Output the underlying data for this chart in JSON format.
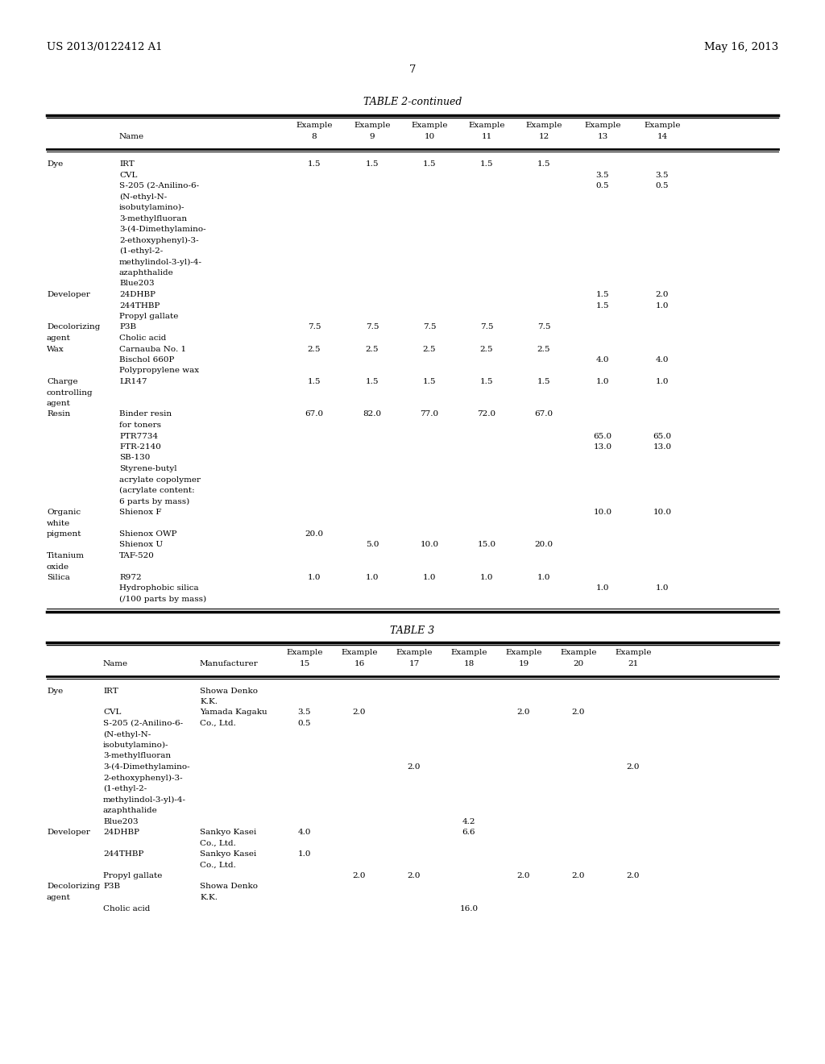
{
  "header_left": "US 2013/0122412 A1",
  "header_right": "May 16, 2013",
  "page_number": "7",
  "table2_title": "TABLE 2-continued",
  "table3_title": "TABLE 3",
  "bg_color": "#ffffff",
  "text_color": "#000000",
  "font_size": 7.5,
  "t2_rows": [
    [
      "Dye",
      "IRT",
      "1.5",
      "1.5",
      "1.5",
      "1.5",
      "1.5",
      "",
      ""
    ],
    [
      "",
      "CVL",
      "",
      "",
      "",
      "",
      "",
      "3.5",
      "3.5"
    ],
    [
      "",
      "S-205 (2-Anilino-6-",
      "",
      "",
      "",
      "",
      "",
      "0.5",
      "0.5"
    ],
    [
      "",
      "(N-ethyl-N-",
      "",
      "",
      "",
      "",
      "",
      "",
      ""
    ],
    [
      "",
      "isobutylamino)-",
      "",
      "",
      "",
      "",
      "",
      "",
      ""
    ],
    [
      "",
      "3-methylfluoran",
      "",
      "",
      "",
      "",
      "",
      "",
      ""
    ],
    [
      "",
      "3-(4-Dimethylamino-",
      "",
      "",
      "",
      "",
      "",
      "",
      ""
    ],
    [
      "",
      "2-ethoxyphenyl)-3-",
      "",
      "",
      "",
      "",
      "",
      "",
      ""
    ],
    [
      "",
      "(1-ethyl-2-",
      "",
      "",
      "",
      "",
      "",
      "",
      ""
    ],
    [
      "",
      "methylindol-3-yl)-4-",
      "",
      "",
      "",
      "",
      "",
      "",
      ""
    ],
    [
      "",
      "azaphthalide",
      "",
      "",
      "",
      "",
      "",
      "",
      ""
    ],
    [
      "",
      "Blue203",
      "",
      "",
      "",
      "",
      "",
      "",
      ""
    ],
    [
      "Developer",
      "24DHBP",
      "",
      "",
      "",
      "",
      "",
      "1.5",
      "2.0"
    ],
    [
      "",
      "244THBP",
      "",
      "",
      "",
      "",
      "",
      "1.5",
      "1.0"
    ],
    [
      "",
      "Propyl gallate",
      "",
      "",
      "",
      "",
      "",
      "",
      ""
    ],
    [
      "Decolorizing",
      "P3B",
      "7.5",
      "7.5",
      "7.5",
      "7.5",
      "7.5",
      "",
      ""
    ],
    [
      "agent",
      "Cholic acid",
      "",
      "",
      "",
      "",
      "",
      "",
      ""
    ],
    [
      "Wax",
      "Carnauba No. 1",
      "2.5",
      "2.5",
      "2.5",
      "2.5",
      "2.5",
      "",
      ""
    ],
    [
      "",
      "Bischol 660P",
      "",
      "",
      "",
      "",
      "",
      "4.0",
      "4.0"
    ],
    [
      "",
      "Polypropylene wax",
      "",
      "",
      "",
      "",
      "",
      "",
      ""
    ],
    [
      "Charge",
      "LR147",
      "1.5",
      "1.5",
      "1.5",
      "1.5",
      "1.5",
      "1.0",
      "1.0"
    ],
    [
      "controlling",
      "",
      "",
      "",
      "",
      "",
      "",
      "",
      ""
    ],
    [
      "agent",
      "",
      "",
      "",
      "",
      "",
      "",
      "",
      ""
    ],
    [
      "Resin",
      "Binder resin",
      "67.0",
      "82.0",
      "77.0",
      "72.0",
      "67.0",
      "",
      ""
    ],
    [
      "",
      "for toners",
      "",
      "",
      "",
      "",
      "",
      "",
      ""
    ],
    [
      "",
      "PTR7734",
      "",
      "",
      "",
      "",
      "",
      "65.0",
      "65.0"
    ],
    [
      "",
      "FTR-2140",
      "",
      "",
      "",
      "",
      "",
      "13.0",
      "13.0"
    ],
    [
      "",
      "SB-130",
      "",
      "",
      "",
      "",
      "",
      "",
      ""
    ],
    [
      "",
      "Styrene-butyl",
      "",
      "",
      "",
      "",
      "",
      "",
      ""
    ],
    [
      "",
      "acrylate copolymer",
      "",
      "",
      "",
      "",
      "",
      "",
      ""
    ],
    [
      "",
      "(acrylate content:",
      "",
      "",
      "",
      "",
      "",
      "",
      ""
    ],
    [
      "",
      "6 parts by mass)",
      "",
      "",
      "",
      "",
      "",
      "",
      ""
    ],
    [
      "Organic",
      "Shienox F",
      "",
      "",
      "",
      "",
      "",
      "10.0",
      "10.0"
    ],
    [
      "white",
      "",
      "",
      "",
      "",
      "",
      "",
      "",
      ""
    ],
    [
      "pigment",
      "Shienox OWP",
      "20.0",
      "",
      "",
      "",
      "",
      "",
      ""
    ],
    [
      "",
      "Shienox U",
      "",
      "5.0",
      "10.0",
      "15.0",
      "20.0",
      "",
      ""
    ],
    [
      "Titanium",
      "TAF-520",
      "",
      "",
      "",
      "",
      "",
      "",
      ""
    ],
    [
      "oxide",
      "",
      "",
      "",
      "",
      "",
      "",
      "",
      ""
    ],
    [
      "Silica",
      "R972",
      "1.0",
      "1.0",
      "1.0",
      "1.0",
      "1.0",
      "",
      ""
    ],
    [
      "",
      "Hydrophobic silica",
      "",
      "",
      "",
      "",
      "",
      "1.0",
      "1.0"
    ],
    [
      "",
      "(/100 parts by mass)",
      "",
      "",
      "",
      "",
      "",
      "",
      ""
    ]
  ],
  "t3_rows": [
    [
      "Dye",
      "IRT",
      "Showa Denko",
      "",
      "",
      "",
      "",
      "",
      "",
      ""
    ],
    [
      "",
      "",
      "K.K.",
      "",
      "",
      "",
      "",
      "",
      "",
      ""
    ],
    [
      "",
      "CVL",
      "Yamada Kagaku",
      "3.5",
      "2.0",
      "",
      "",
      "2.0",
      "2.0",
      ""
    ],
    [
      "",
      "S-205 (2-Anilino-6-",
      "Co., Ltd.",
      "0.5",
      "",
      "",
      "",
      "",
      "",
      ""
    ],
    [
      "",
      "(N-ethyl-N-",
      "",
      "",
      "",
      "",
      "",
      "",
      "",
      ""
    ],
    [
      "",
      "isobutylamino)-",
      "",
      "",
      "",
      "",
      "",
      "",
      "",
      ""
    ],
    [
      "",
      "3-methylfluoran",
      "",
      "",
      "",
      "",
      "",
      "",
      "",
      ""
    ],
    [
      "",
      "3-(4-Dimethylamino-",
      "",
      "",
      "",
      "2.0",
      "",
      "",
      "",
      "2.0"
    ],
    [
      "",
      "2-ethoxyphenyl)-3-",
      "",
      "",
      "",
      "",
      "",
      "",
      "",
      ""
    ],
    [
      "",
      "(1-ethyl-2-",
      "",
      "",
      "",
      "",
      "",
      "",
      "",
      ""
    ],
    [
      "",
      "methylindol-3-yl)-4-",
      "",
      "",
      "",
      "",
      "",
      "",
      "",
      ""
    ],
    [
      "",
      "azaphthalide",
      "",
      "",
      "",
      "",
      "",
      "",
      "",
      ""
    ],
    [
      "",
      "Blue203",
      "",
      "",
      "",
      "",
      "4.2",
      "",
      "",
      ""
    ],
    [
      "Developer",
      "24DHBP",
      "Sankyo Kasei",
      "4.0",
      "",
      "",
      "6.6",
      "",
      "",
      ""
    ],
    [
      "",
      "",
      "Co., Ltd.",
      "",
      "",
      "",
      "",
      "",
      "",
      ""
    ],
    [
      "",
      "244THBP",
      "Sankyo Kasei",
      "1.0",
      "",
      "",
      "",
      "",
      "",
      ""
    ],
    [
      "",
      "",
      "Co., Ltd.",
      "",
      "",
      "",
      "",
      "",
      "",
      ""
    ],
    [
      "",
      "Propyl gallate",
      "",
      "",
      "2.0",
      "2.0",
      "",
      "2.0",
      "2.0",
      "2.0"
    ],
    [
      "Decolorizing",
      "P3B",
      "Showa Denko",
      "",
      "",
      "",
      "",
      "",
      "",
      ""
    ],
    [
      "agent",
      "",
      "K.K.",
      "",
      "",
      "",
      "",
      "",
      "",
      ""
    ],
    [
      "",
      "Cholic acid",
      "",
      "",
      "",
      "",
      "16.0",
      "",
      "",
      ""
    ]
  ]
}
